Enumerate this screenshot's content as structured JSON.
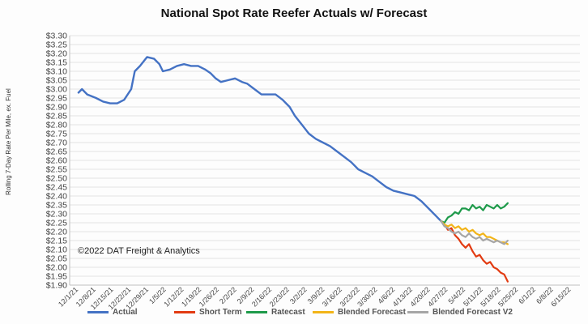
{
  "chart_data": {
    "type": "line",
    "title": "National Spot Rate Reefer Actuals w/ Forecast",
    "ylabel": "Rolling 7-Day Rate Per Mile, ex. Fuel",
    "xlabel": "",
    "ylim": [
      1.9,
      3.3
    ],
    "y_ticks": [
      "$3.30",
      "$3.25",
      "$3.20",
      "$3.15",
      "$3.10",
      "$3.05",
      "$3.00",
      "$2.95",
      "$2.90",
      "$2.85",
      "$2.80",
      "$2.75",
      "$2.70",
      "$2.65",
      "$2.60",
      "$2.55",
      "$2.50",
      "$2.45",
      "$2.40",
      "$2.35",
      "$2.30",
      "$2.25",
      "$2.20",
      "$2.15",
      "$2.10",
      "$2.05",
      "$2.00",
      "$1.95",
      "$1.90"
    ],
    "x_ticks": [
      "12/1/21",
      "12/8/21",
      "12/15/21",
      "12/22/21",
      "12/29/21",
      "1/5/22",
      "1/12/22",
      "1/19/22",
      "1/26/22",
      "2/2/22",
      "2/9/22",
      "2/16/22",
      "2/23/22",
      "3/2/22",
      "3/9/22",
      "3/16/22",
      "3/23/22",
      "3/30/22",
      "4/6/22",
      "4/13/22",
      "4/20/22",
      "4/27/22",
      "5/4/22",
      "5/11/22",
      "5/18/22",
      "5/25/22",
      "6/1/22",
      "6/8/22",
      "6/15/22"
    ],
    "annotation": "©2022 DAT Freight & Analytics",
    "series": [
      {
        "name": "Actual",
        "color": "#4472c4",
        "points": [
          [
            0,
            2.98
          ],
          [
            0.2,
            3.0
          ],
          [
            0.5,
            2.97
          ],
          [
            1,
            2.95
          ],
          [
            1.4,
            2.93
          ],
          [
            1.8,
            2.92
          ],
          [
            2.2,
            2.92
          ],
          [
            2.6,
            2.94
          ],
          [
            3.0,
            3.0
          ],
          [
            3.2,
            3.1
          ],
          [
            3.5,
            3.13
          ],
          [
            3.9,
            3.18
          ],
          [
            4.3,
            3.17
          ],
          [
            4.6,
            3.14
          ],
          [
            4.8,
            3.1
          ],
          [
            5.2,
            3.11
          ],
          [
            5.6,
            3.13
          ],
          [
            6.0,
            3.14
          ],
          [
            6.4,
            3.13
          ],
          [
            6.8,
            3.13
          ],
          [
            7.2,
            3.11
          ],
          [
            7.5,
            3.09
          ],
          [
            7.8,
            3.06
          ],
          [
            8.1,
            3.04
          ],
          [
            8.5,
            3.05
          ],
          [
            8.9,
            3.06
          ],
          [
            9.3,
            3.04
          ],
          [
            9.6,
            3.03
          ],
          [
            10.0,
            3.0
          ],
          [
            10.4,
            2.97
          ],
          [
            10.8,
            2.97
          ],
          [
            11.2,
            2.97
          ],
          [
            11.6,
            2.94
          ],
          [
            12.0,
            2.9
          ],
          [
            12.3,
            2.85
          ],
          [
            12.7,
            2.8
          ],
          [
            13.1,
            2.75
          ],
          [
            13.5,
            2.72
          ],
          [
            13.9,
            2.7
          ],
          [
            14.3,
            2.68
          ],
          [
            14.7,
            2.65
          ],
          [
            15.1,
            2.62
          ],
          [
            15.5,
            2.59
          ],
          [
            15.9,
            2.55
          ],
          [
            16.3,
            2.53
          ],
          [
            16.7,
            2.51
          ],
          [
            17.1,
            2.48
          ],
          [
            17.5,
            2.45
          ],
          [
            17.9,
            2.43
          ],
          [
            18.3,
            2.42
          ],
          [
            18.7,
            2.41
          ],
          [
            19.1,
            2.4
          ],
          [
            19.5,
            2.37
          ],
          [
            19.9,
            2.33
          ],
          [
            20.3,
            2.29
          ],
          [
            20.6,
            2.26
          ]
        ]
      },
      {
        "name": "Short Term",
        "color": "#e23b12",
        "points": [
          [
            20.6,
            2.26
          ],
          [
            20.8,
            2.24
          ],
          [
            21.0,
            2.21
          ],
          [
            21.2,
            2.22
          ],
          [
            21.4,
            2.18
          ],
          [
            21.6,
            2.16
          ],
          [
            21.8,
            2.13
          ],
          [
            22.0,
            2.11
          ],
          [
            22.2,
            2.13
          ],
          [
            22.4,
            2.09
          ],
          [
            22.6,
            2.06
          ],
          [
            22.8,
            2.07
          ],
          [
            23.0,
            2.04
          ],
          [
            23.2,
            2.02
          ],
          [
            23.4,
            2.03
          ],
          [
            23.6,
            2.0
          ],
          [
            23.8,
            1.99
          ],
          [
            24.0,
            1.97
          ],
          [
            24.2,
            1.96
          ],
          [
            24.4,
            1.92
          ]
        ]
      },
      {
        "name": "Ratecast",
        "color": "#1e9a4a",
        "points": [
          [
            20.6,
            2.26
          ],
          [
            20.8,
            2.25
          ],
          [
            21.0,
            2.28
          ],
          [
            21.2,
            2.29
          ],
          [
            21.4,
            2.31
          ],
          [
            21.6,
            2.3
          ],
          [
            21.8,
            2.33
          ],
          [
            22.0,
            2.33
          ],
          [
            22.2,
            2.32
          ],
          [
            22.4,
            2.35
          ],
          [
            22.6,
            2.33
          ],
          [
            22.8,
            2.34
          ],
          [
            23.0,
            2.32
          ],
          [
            23.2,
            2.35
          ],
          [
            23.4,
            2.34
          ],
          [
            23.6,
            2.33
          ],
          [
            23.8,
            2.35
          ],
          [
            24.0,
            2.33
          ],
          [
            24.2,
            2.34
          ],
          [
            24.4,
            2.36
          ]
        ]
      },
      {
        "name": "Blended Forecast",
        "color": "#f2b418",
        "points": [
          [
            20.6,
            2.26
          ],
          [
            20.8,
            2.24
          ],
          [
            21.0,
            2.23
          ],
          [
            21.2,
            2.24
          ],
          [
            21.4,
            2.22
          ],
          [
            21.6,
            2.23
          ],
          [
            21.8,
            2.21
          ],
          [
            22.0,
            2.22
          ],
          [
            22.2,
            2.2
          ],
          [
            22.4,
            2.21
          ],
          [
            22.6,
            2.19
          ],
          [
            22.8,
            2.18
          ],
          [
            23.0,
            2.19
          ],
          [
            23.2,
            2.17
          ],
          [
            23.4,
            2.17
          ],
          [
            23.6,
            2.16
          ],
          [
            23.8,
            2.15
          ],
          [
            24.0,
            2.14
          ],
          [
            24.2,
            2.14
          ],
          [
            24.4,
            2.13
          ]
        ]
      },
      {
        "name": "Blended Forecast V2",
        "color": "#a6a6a6",
        "points": [
          [
            20.6,
            2.26
          ],
          [
            20.8,
            2.23
          ],
          [
            21.0,
            2.22
          ],
          [
            21.2,
            2.2
          ],
          [
            21.4,
            2.19
          ],
          [
            21.6,
            2.2
          ],
          [
            21.8,
            2.18
          ],
          [
            22.0,
            2.17
          ],
          [
            22.2,
            2.19
          ],
          [
            22.4,
            2.17
          ],
          [
            22.6,
            2.16
          ],
          [
            22.8,
            2.17
          ],
          [
            23.0,
            2.15
          ],
          [
            23.2,
            2.16
          ],
          [
            23.4,
            2.15
          ],
          [
            23.6,
            2.14
          ],
          [
            23.8,
            2.15
          ],
          [
            24.0,
            2.14
          ],
          [
            24.2,
            2.13
          ],
          [
            24.4,
            2.15
          ]
        ]
      }
    ]
  }
}
